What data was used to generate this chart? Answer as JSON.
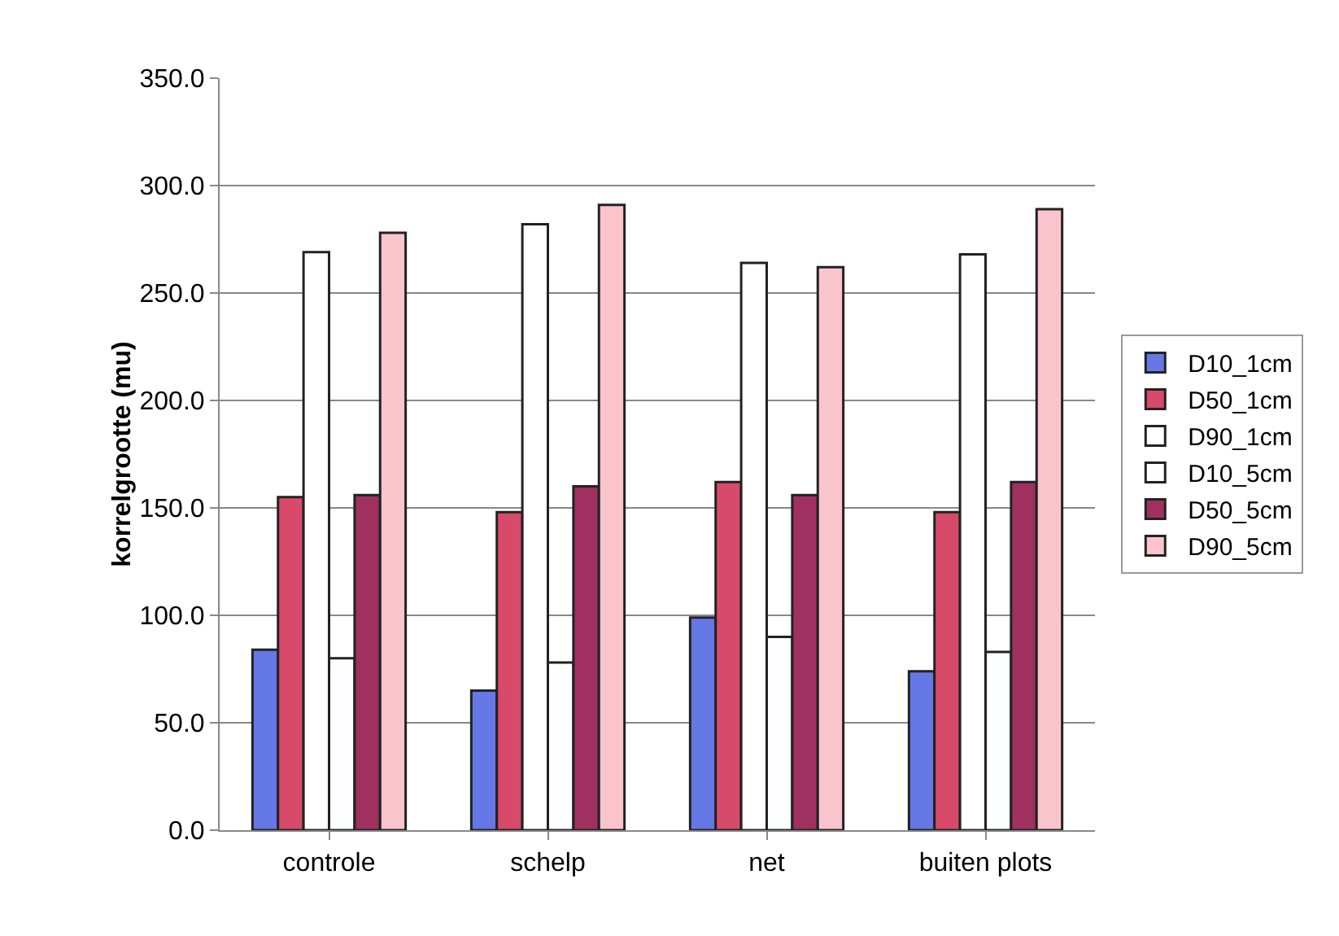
{
  "chart_data": {
    "type": "bar",
    "ylabel": "korrelgrootte (mu)",
    "categories": [
      "controle",
      "schelp",
      "net",
      "buiten plots"
    ],
    "series": [
      {
        "name": "D10_1cm",
        "color": "#6677e6",
        "values": [
          84,
          65,
          99,
          74
        ]
      },
      {
        "name": "D50_1cm",
        "color": "#d84a6a",
        "values": [
          155,
          148,
          162,
          148
        ]
      },
      {
        "name": "D90_1cm",
        "color": "#ffffff",
        "values": [
          269,
          282,
          264,
          268
        ]
      },
      {
        "name": "D10_5cm",
        "color": "#fdfeff",
        "values": [
          80,
          78,
          90,
          83
        ]
      },
      {
        "name": "D50_5cm",
        "color": "#a03060",
        "values": [
          156,
          160,
          156,
          162
        ]
      },
      {
        "name": "D90_5cm",
        "color": "#f9c4cc",
        "values": [
          278,
          291,
          262,
          289
        ]
      }
    ],
    "ylim": [
      0,
      350
    ],
    "yticks": [
      {
        "value": 0,
        "label": "0.0"
      },
      {
        "value": 50,
        "label": "50.0"
      },
      {
        "value": 100,
        "label": "100.0"
      },
      {
        "value": 150,
        "label": "150.0"
      },
      {
        "value": 200,
        "label": "200.0"
      },
      {
        "value": 250,
        "label": "250.0"
      },
      {
        "value": 300,
        "label": "300.0"
      },
      {
        "value": 350,
        "label": "350.0"
      }
    ],
    "grid": "y",
    "legend": "right"
  }
}
